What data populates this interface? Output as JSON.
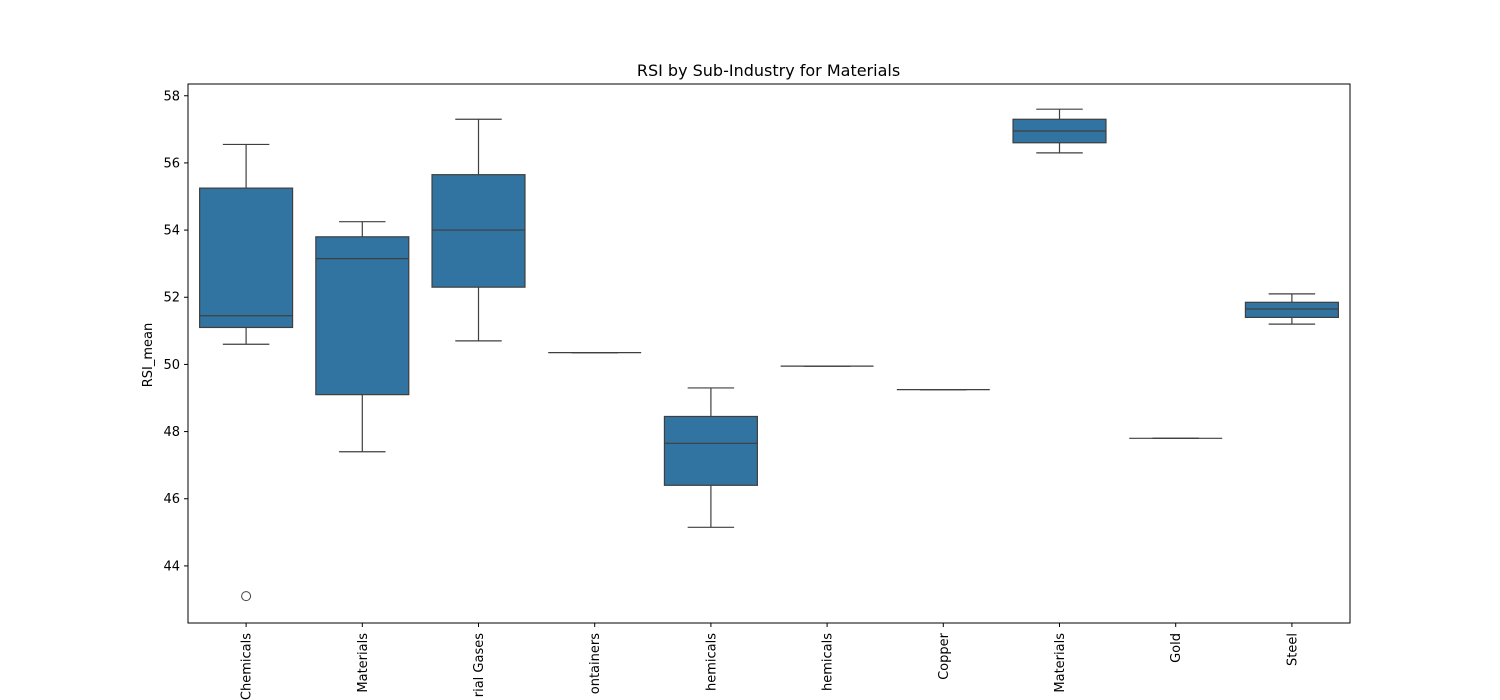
{
  "chart_data": {
    "type": "box",
    "title": "RSI by Sub-Industry for Materials",
    "xlabel": "",
    "ylabel": "RSI_mean",
    "ylim": [
      42.3,
      58.35
    ],
    "yticks": [
      44,
      46,
      48,
      50,
      52,
      54,
      56,
      58
    ],
    "grid": false,
    "box_color": "#3274A1",
    "line_color": "#3f3f3f",
    "categories": [
      "Chemicals",
      "Materials",
      "rial Gases",
      "ontainers",
      "hemicals",
      "hemicals",
      "Copper",
      "Materials",
      "Gold",
      "Steel"
    ],
    "boxes": [
      {
        "whisker_low": 50.6,
        "q1": 51.1,
        "median": 51.45,
        "q3": 55.25,
        "whisker_high": 56.55,
        "outliers": [
          43.1
        ]
      },
      {
        "whisker_low": 47.4,
        "q1": 49.1,
        "median": 53.15,
        "q3": 53.8,
        "whisker_high": 54.25,
        "outliers": []
      },
      {
        "whisker_low": 50.7,
        "q1": 52.3,
        "median": 54.0,
        "q3": 55.65,
        "whisker_high": 57.3,
        "outliers": []
      },
      {
        "whisker_low": 50.35,
        "q1": 50.35,
        "median": 50.35,
        "q3": 50.35,
        "whisker_high": 50.35,
        "outliers": []
      },
      {
        "whisker_low": 45.15,
        "q1": 46.4,
        "median": 47.65,
        "q3": 48.45,
        "whisker_high": 49.3,
        "outliers": []
      },
      {
        "whisker_low": 49.95,
        "q1": 49.95,
        "median": 49.95,
        "q3": 49.95,
        "whisker_high": 49.95,
        "outliers": []
      },
      {
        "whisker_low": 49.25,
        "q1": 49.25,
        "median": 49.25,
        "q3": 49.25,
        "whisker_high": 49.25,
        "outliers": []
      },
      {
        "whisker_low": 56.3,
        "q1": 56.6,
        "median": 56.95,
        "q3": 57.3,
        "whisker_high": 57.6,
        "outliers": []
      },
      {
        "whisker_low": 47.8,
        "q1": 47.8,
        "median": 47.8,
        "q3": 47.8,
        "whisker_high": 47.8,
        "outliers": []
      },
      {
        "whisker_low": 51.2,
        "q1": 51.4,
        "median": 51.65,
        "q3": 51.85,
        "whisker_high": 52.1,
        "outliers": []
      }
    ]
  }
}
